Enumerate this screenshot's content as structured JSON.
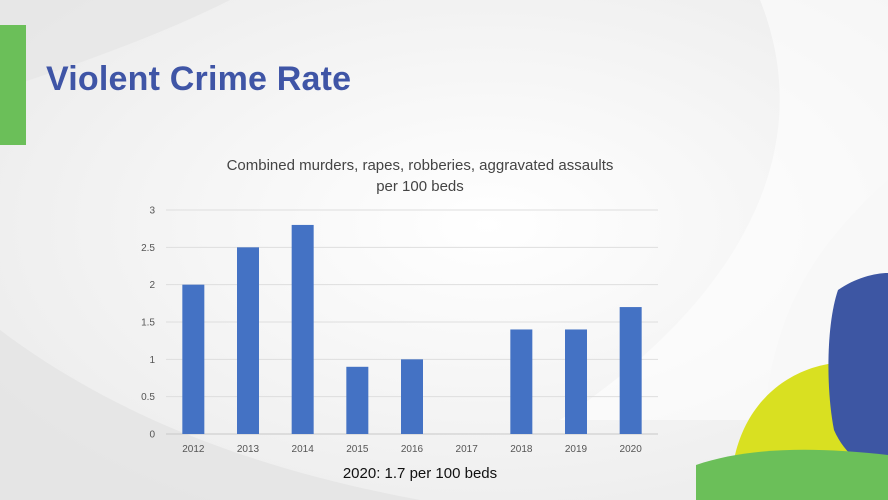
{
  "slide": {
    "title": "Violent Crime Rate",
    "caption": "2020: 1.7 per 100 beds"
  },
  "colors": {
    "title": "#3f55a6",
    "bar": "#4472c4",
    "accent_green": "#6bbf59",
    "accent_navy": "#3d56a3",
    "accent_yellow": "#d9e021"
  },
  "chart_data": {
    "type": "bar",
    "title_lines": [
      "Combined murders, rapes, robberies, aggravated assaults",
      "per 100 beds"
    ],
    "categories": [
      "2012",
      "2013",
      "2014",
      "2015",
      "2016",
      "2017",
      "2018",
      "2019",
      "2020"
    ],
    "values": [
      2.0,
      2.5,
      2.8,
      0.9,
      1.0,
      null,
      1.4,
      1.4,
      1.7
    ],
    "ylim": [
      0,
      3
    ],
    "yticks": [
      0,
      0.5,
      1,
      1.5,
      2,
      2.5,
      3
    ],
    "ytick_labels": [
      "0",
      "0.5",
      "1",
      "1.5",
      "2",
      "2.5",
      "3"
    ],
    "xlabel": "",
    "ylabel": "",
    "grid": true,
    "legend": "none"
  }
}
